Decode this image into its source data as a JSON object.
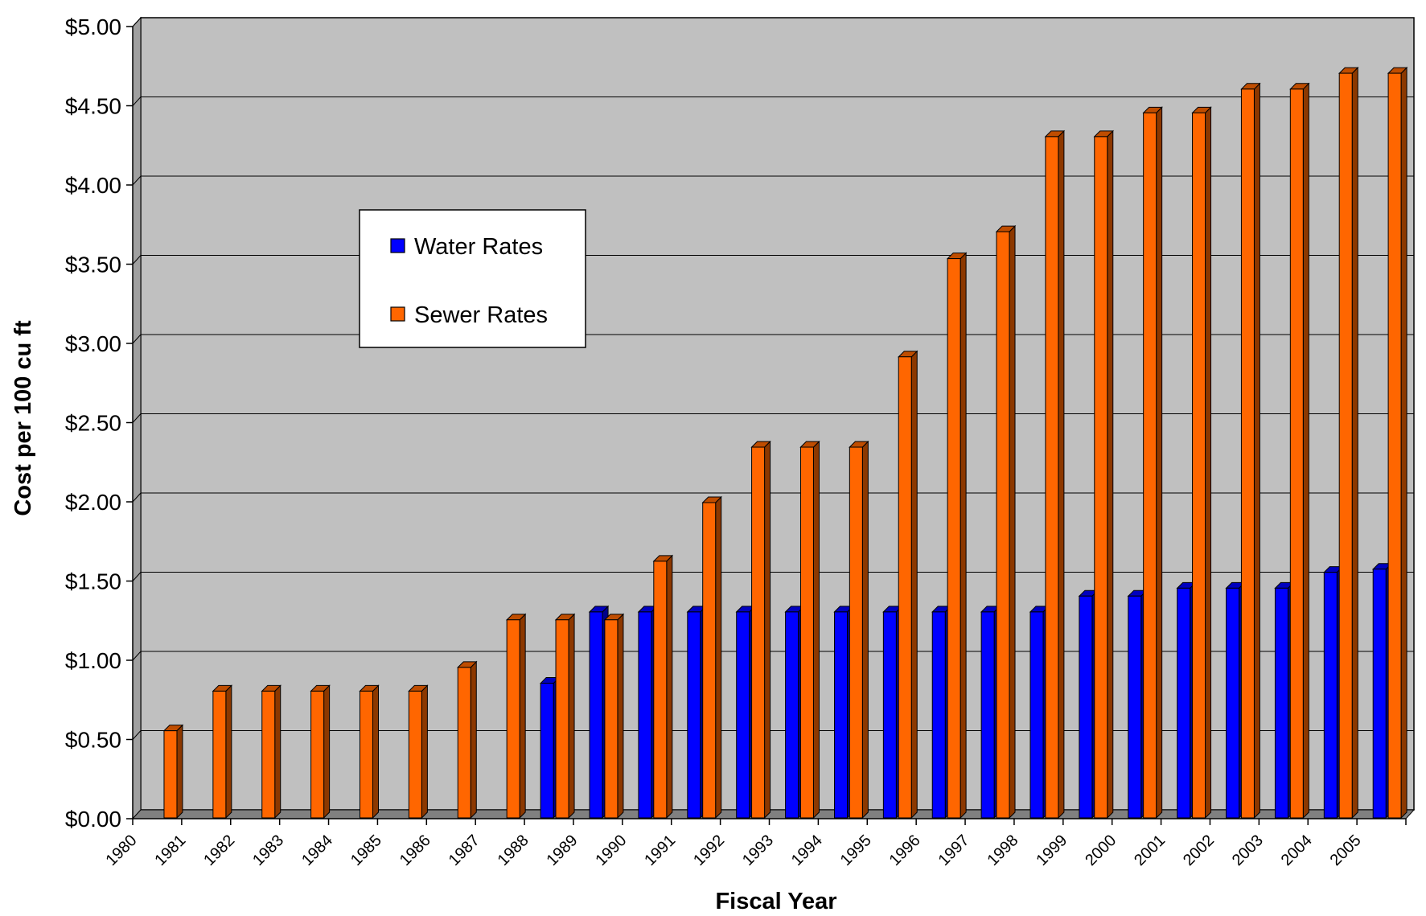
{
  "chart_data": {
    "type": "bar",
    "style": "3d-clustered-column",
    "title": "",
    "xlabel": "Fiscal Year",
    "ylabel": "Cost per 100 cu ft",
    "ylim": [
      0,
      5
    ],
    "y_tick_step": 0.5,
    "y_tick_labels": [
      "$0.00",
      "$0.50",
      "$1.00",
      "$1.50",
      "$2.00",
      "$2.50",
      "$3.00",
      "$3.50",
      "$4.00",
      "$4.50",
      "$5.00"
    ],
    "grid": true,
    "legend_position": "upper-left-inside",
    "categories": [
      "1980",
      "1981",
      "1982",
      "1983",
      "1984",
      "1985",
      "1986",
      "1987",
      "1988",
      "1989",
      "1990",
      "1991",
      "1992",
      "1993",
      "1994",
      "1995",
      "1996",
      "1997",
      "1998",
      "1999",
      "2000",
      "2001",
      "2002",
      "2003",
      "2004",
      "2005"
    ],
    "series": [
      {
        "name": "Water Rates",
        "color": "#0000ff",
        "values": [
          0,
          0,
          0,
          0,
          0,
          0,
          0,
          0,
          0.85,
          1.3,
          1.3,
          1.3,
          1.3,
          1.3,
          1.3,
          1.3,
          1.3,
          1.3,
          1.3,
          1.4,
          1.4,
          1.45,
          1.45,
          1.45,
          1.55,
          1.57
        ]
      },
      {
        "name": "Sewer Rates",
        "color": "#ff6600",
        "values": [
          0.55,
          0.8,
          0.8,
          0.8,
          0.8,
          0.8,
          0.95,
          1.25,
          1.25,
          1.25,
          1.62,
          1.99,
          2.34,
          2.34,
          2.34,
          2.91,
          3.53,
          3.7,
          4.3,
          4.3,
          4.45,
          4.45,
          4.6,
          4.6,
          4.7,
          4.7
        ]
      }
    ]
  },
  "colors": {
    "plot_background": "#c0c0c0",
    "floor": "#808080",
    "gridline": "#000000"
  }
}
